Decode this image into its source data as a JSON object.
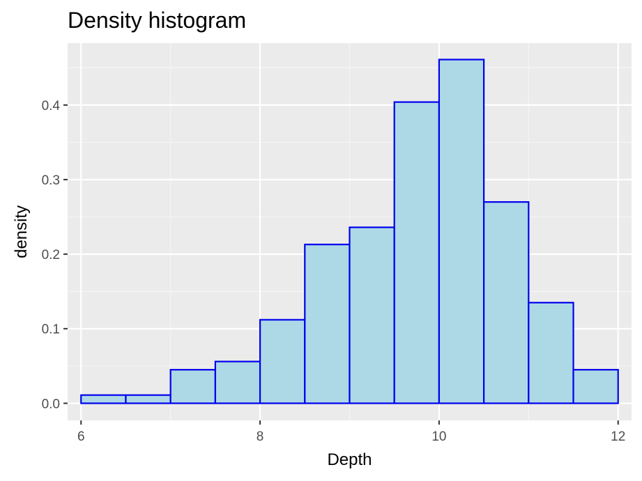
{
  "chart_data": {
    "type": "bar",
    "title": "Density histogram",
    "xlabel": "Depth",
    "ylabel": "density",
    "xlim": [
      5.85,
      12.15
    ],
    "ylim": [
      -0.023,
      0.483
    ],
    "x_ticks": [
      6,
      8,
      10,
      12
    ],
    "x_tick_labels": [
      "6",
      "8",
      "10",
      "12"
    ],
    "y_ticks": [
      0.0,
      0.1,
      0.2,
      0.3,
      0.4
    ],
    "y_tick_labels": [
      "0.0",
      "0.1",
      "0.2",
      "0.3",
      "0.4"
    ],
    "bin_width": 0.5,
    "bins": [
      {
        "x0": 6.0,
        "x1": 6.5,
        "density": 0.011
      },
      {
        "x0": 6.5,
        "x1": 7.0,
        "density": 0.011
      },
      {
        "x0": 7.0,
        "x1": 7.5,
        "density": 0.045
      },
      {
        "x0": 7.5,
        "x1": 8.0,
        "density": 0.056
      },
      {
        "x0": 8.0,
        "x1": 8.5,
        "density": 0.112
      },
      {
        "x0": 8.5,
        "x1": 9.0,
        "density": 0.213
      },
      {
        "x0": 9.0,
        "x1": 9.5,
        "density": 0.236
      },
      {
        "x0": 9.5,
        "x1": 10.0,
        "density": 0.404
      },
      {
        "x0": 10.0,
        "x1": 10.5,
        "density": 0.461
      },
      {
        "x0": 10.5,
        "x1": 11.0,
        "density": 0.27
      },
      {
        "x0": 11.0,
        "x1": 11.5,
        "density": 0.135
      },
      {
        "x0": 11.5,
        "x1": 12.0,
        "density": 0.045
      }
    ],
    "grid": true,
    "colors": {
      "panel_background": "#ebebeb",
      "grid_major": "#ffffff",
      "grid_minor": "#f5f5f5",
      "bar_fill": "#add8e6",
      "bar_outline": "#0000ee",
      "tick_mark": "#333333"
    }
  }
}
